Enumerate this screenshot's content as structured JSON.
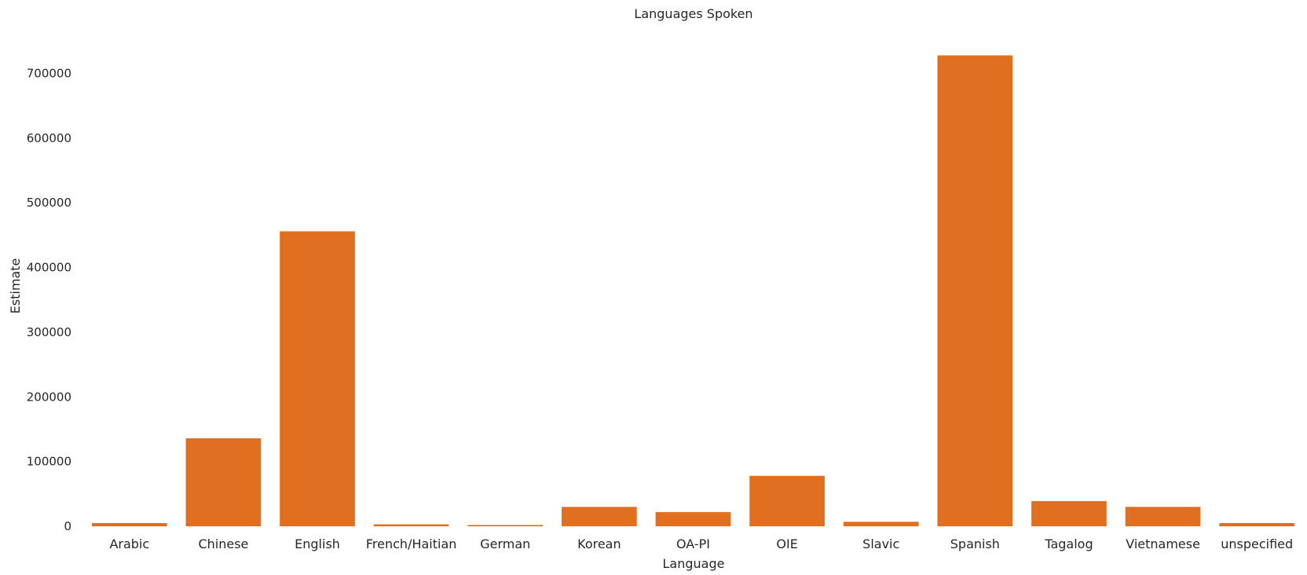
{
  "chart_data": {
    "type": "bar",
    "title": "Languages Spoken",
    "xlabel": "Language",
    "ylabel": "Estimate",
    "categories": [
      "Arabic",
      "Chinese",
      "English",
      "French/Haitian",
      "German",
      "Korean",
      "OA-PI",
      "OIE",
      "Slavic",
      "Spanish",
      "Tagalog",
      "Vietnamese",
      "unspecified"
    ],
    "values": [
      5000,
      136000,
      456000,
      3000,
      2000,
      30000,
      22000,
      78000,
      7000,
      728000,
      39000,
      30000,
      5000
    ],
    "yticks": [
      0,
      100000,
      200000,
      300000,
      400000,
      500000,
      600000,
      700000
    ],
    "ylim": [
      0,
      765000
    ],
    "bar_color": "#e07020",
    "grid": false,
    "legend": "none"
  }
}
